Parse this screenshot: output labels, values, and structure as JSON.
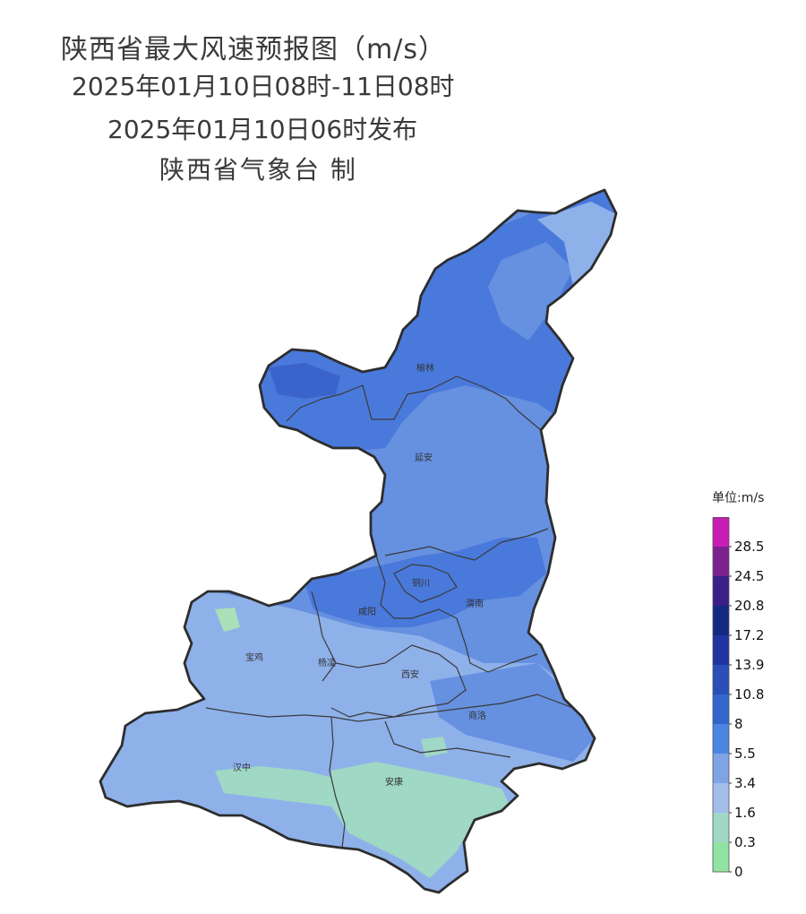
{
  "title": {
    "line1": "陕西省最大风速预报图（m/s）",
    "line2": "2025年01月10日08时-11日08时",
    "line3": "2025年01月10日06时发布",
    "line4": "陕西省气象台 制"
  },
  "cities": [
    {
      "id": "yulin",
      "label": "榆林"
    },
    {
      "id": "yanan",
      "label": "延安"
    },
    {
      "id": "tongchuan",
      "label": "铜川"
    },
    {
      "id": "xianyang",
      "label": "咸阳"
    },
    {
      "id": "weinan",
      "label": "渭南"
    },
    {
      "id": "baoji",
      "label": "宝鸡"
    },
    {
      "id": "yangling",
      "label": "杨凌"
    },
    {
      "id": "xian",
      "label": "西安"
    },
    {
      "id": "shangluo",
      "label": "商洛"
    },
    {
      "id": "hanzhong",
      "label": "汉中"
    },
    {
      "id": "ankang",
      "label": "安康"
    }
  ],
  "legend": {
    "title": "单位:m/s",
    "bins": [
      {
        "label": "0",
        "color": "#90e3a0"
      },
      {
        "label": "0.3",
        "color": "#9fd8c4"
      },
      {
        "label": "1.6",
        "color": "#a3bdea"
      },
      {
        "label": "3.4",
        "color": "#7ea4e4"
      },
      {
        "label": "5.5",
        "color": "#4b86e2"
      },
      {
        "label": "8",
        "color": "#3366cc"
      },
      {
        "label": "10.8",
        "color": "#2a4fb9"
      },
      {
        "label": "13.9",
        "color": "#1f34a0"
      },
      {
        "label": "17.2",
        "color": "#132a82"
      },
      {
        "label": "20.8",
        "color": "#3a1f88"
      },
      {
        "label": "24.5",
        "color": "#7b228f"
      },
      {
        "label": "28.5",
        "color": "#c81db5"
      }
    ],
    "max_color": "#c81db5"
  },
  "fill_colors": {
    "north_dark": "#4a79dc",
    "north_darker": "#3a64cc",
    "mid": "#6690e0",
    "light": "#8fb1ea",
    "teal": "#9fd8c4",
    "green": "#a9e0b8"
  }
}
